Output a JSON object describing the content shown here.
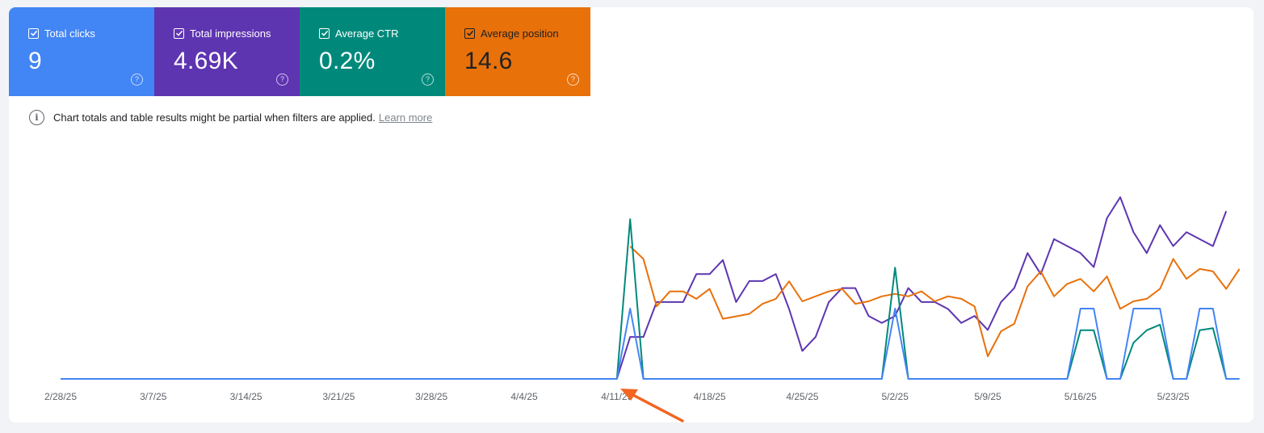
{
  "metrics": [
    {
      "label": "Total clicks",
      "value": "9",
      "color": "#4285f4"
    },
    {
      "label": "Total impressions",
      "value": "4.69K",
      "color": "#5e35b1"
    },
    {
      "label": "Average CTR",
      "value": "0.2%",
      "color": "#00897b"
    },
    {
      "label": "Average position",
      "value": "14.6",
      "color": "#e8710a"
    }
  ],
  "notice": {
    "text": "Chart totals and table results might be partial when filters are applied.",
    "link": "Learn more"
  },
  "chart_data": {
    "type": "line",
    "x_ticks": [
      "2/28/25",
      "3/7/25",
      "3/14/25",
      "3/21/25",
      "3/28/25",
      "4/4/25",
      "4/11/25",
      "4/18/25",
      "4/25/25",
      "5/2/25",
      "5/9/25",
      "5/16/25",
      "5/23/25"
    ],
    "x_start": "2/28/25",
    "y_axis_hidden": true,
    "grid": false,
    "series": [
      {
        "color": "#4285f4",
        "start_index": 0,
        "values": [
          0,
          0,
          0,
          0,
          0,
          0,
          0,
          0,
          0,
          0,
          0,
          0,
          0,
          0,
          0,
          0,
          0,
          0,
          0,
          0,
          0,
          0,
          0,
          0,
          0,
          0,
          0,
          0,
          0,
          0,
          0,
          0,
          0,
          0,
          0,
          0,
          0,
          0,
          0,
          0,
          0,
          0,
          0,
          1,
          0,
          0,
          0,
          0,
          0,
          0,
          0,
          0,
          0,
          0,
          0,
          0,
          0,
          0,
          0,
          0,
          0,
          0,
          0,
          1,
          0,
          0,
          0,
          0,
          0,
          0,
          0,
          0,
          0,
          0,
          0,
          0,
          0,
          1,
          1,
          0,
          0,
          1,
          1,
          1,
          0,
          0,
          1,
          1,
          0,
          0
        ]
      },
      {
        "color": "#00897b",
        "start_index": 0,
        "values": [
          0,
          0,
          0,
          0,
          0,
          0,
          0,
          0,
          0,
          0,
          0,
          0,
          0,
          0,
          0,
          0,
          0,
          0,
          0,
          0,
          0,
          0,
          0,
          0,
          0,
          0,
          0,
          0,
          0,
          0,
          0,
          0,
          0,
          0,
          0,
          0,
          0,
          0,
          0,
          0,
          0,
          0,
          0,
          2.3,
          0,
          0,
          0,
          0,
          0,
          0,
          0,
          0,
          0,
          0,
          0,
          0,
          0,
          0,
          0,
          0,
          0,
          0,
          0,
          1.6,
          0,
          0,
          0,
          0,
          0,
          0,
          0,
          0,
          0,
          0,
          0,
          0,
          0,
          0.7,
          0.7,
          0,
          0,
          0.52,
          0.7,
          0.78,
          0,
          0,
          0.7,
          0.73,
          0,
          0
        ]
      },
      {
        "color": "#5e35b1",
        "start_index": 42,
        "values": [
          0,
          6,
          6,
          11,
          11,
          11,
          15,
          15,
          17,
          11,
          14,
          14,
          15,
          10,
          4,
          6,
          11,
          13,
          13,
          9,
          8,
          9,
          13,
          11,
          11,
          10,
          8,
          9,
          7,
          11,
          13,
          18,
          15,
          20,
          19,
          18,
          16,
          23,
          26,
          21,
          18,
          22,
          19,
          21,
          20,
          19,
          24
        ]
      },
      {
        "color": "#e8710a",
        "start_index": 43,
        "values": [
          14.6,
          14.1,
          12.2,
          12.8,
          12.8,
          12.5,
          12.9,
          11.7,
          11.8,
          11.9,
          12.3,
          12.5,
          13.2,
          12.4,
          12.6,
          12.8,
          12.9,
          12.3,
          12.4,
          12.6,
          12.7,
          12.6,
          12.8,
          12.4,
          12.6,
          12.5,
          12.2,
          10.2,
          11.2,
          11.5,
          13.0,
          13.6,
          12.6,
          13.1,
          13.3,
          12.8,
          13.4,
          12.1,
          12.4,
          12.5,
          12.9,
          14.1,
          13.3,
          13.7,
          13.6,
          12.9,
          13.7
        ]
      }
    ]
  }
}
